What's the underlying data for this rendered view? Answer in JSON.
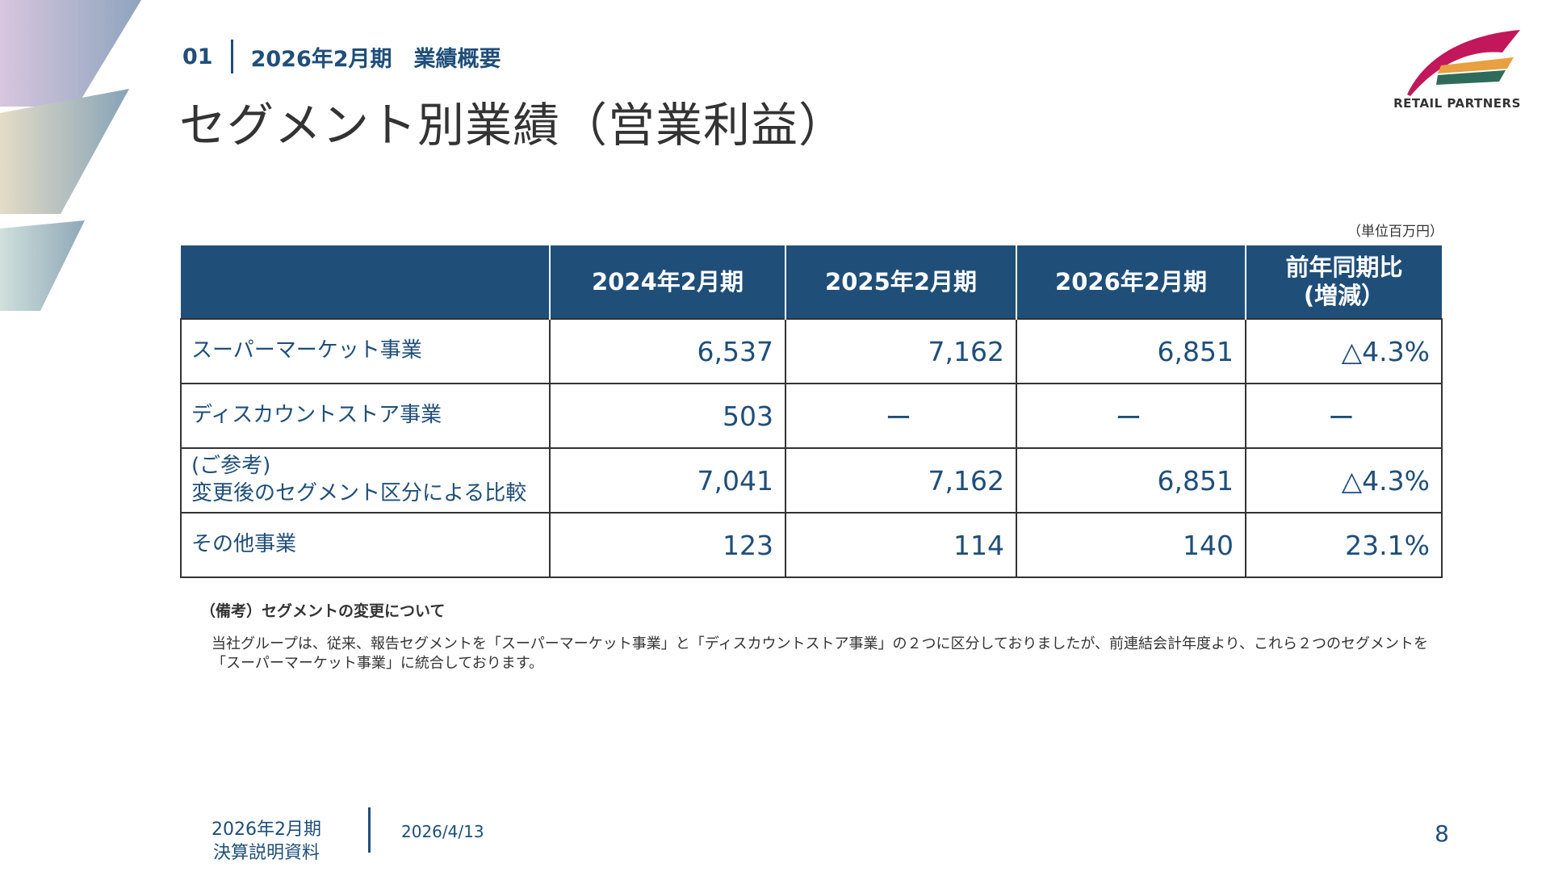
{
  "header": {
    "section_number": "01",
    "section_title": "2026年2月期　業績概要",
    "slide_title": "セグメント別業績（営業利益）"
  },
  "logo": {
    "text": "RETAIL PARTNERS"
  },
  "table": {
    "unit_note": "（単位百万円）",
    "columns": [
      "",
      "2024年2月期",
      "2025年2月期",
      "2026年2月期",
      "前年同期比\n(増減）"
    ],
    "rows": [
      {
        "label": "スーパーマーケット事業",
        "values": [
          "6,537",
          "7,162",
          "6,851",
          "△4.3%"
        ]
      },
      {
        "label": "ディスカウントストア事業",
        "values": [
          "503",
          "ー",
          "ー",
          "ー"
        ]
      },
      {
        "label": "(ご参考)\n変更後のセグメント区分による比較",
        "values": [
          "7,041",
          "7,162",
          "6,851",
          "△4.3%"
        ]
      },
      {
        "label": "その他事業",
        "values": [
          "123",
          "114",
          "140",
          "23.1%"
        ]
      }
    ]
  },
  "notes": {
    "title": "（備考）セグメントの変更について",
    "body": "当社グループは、従来、報告セグメントを「スーパーマーケット事業」と「ディスカウントストア事業」の２つに区分しておりましたが、前連結会計年度より、これら２つのセグメントを「スーパーマーケット事業」に統合しております。"
  },
  "footer": {
    "doc_title": "2026年2月期\n決算説明資料",
    "date": "2026/4/13",
    "page": "8"
  },
  "colors": {
    "primary": "#1f4e79",
    "text": "#333333",
    "logo_magenta": "#c2185b",
    "logo_orange": "#e8a040",
    "logo_green": "#2e6b5a"
  }
}
